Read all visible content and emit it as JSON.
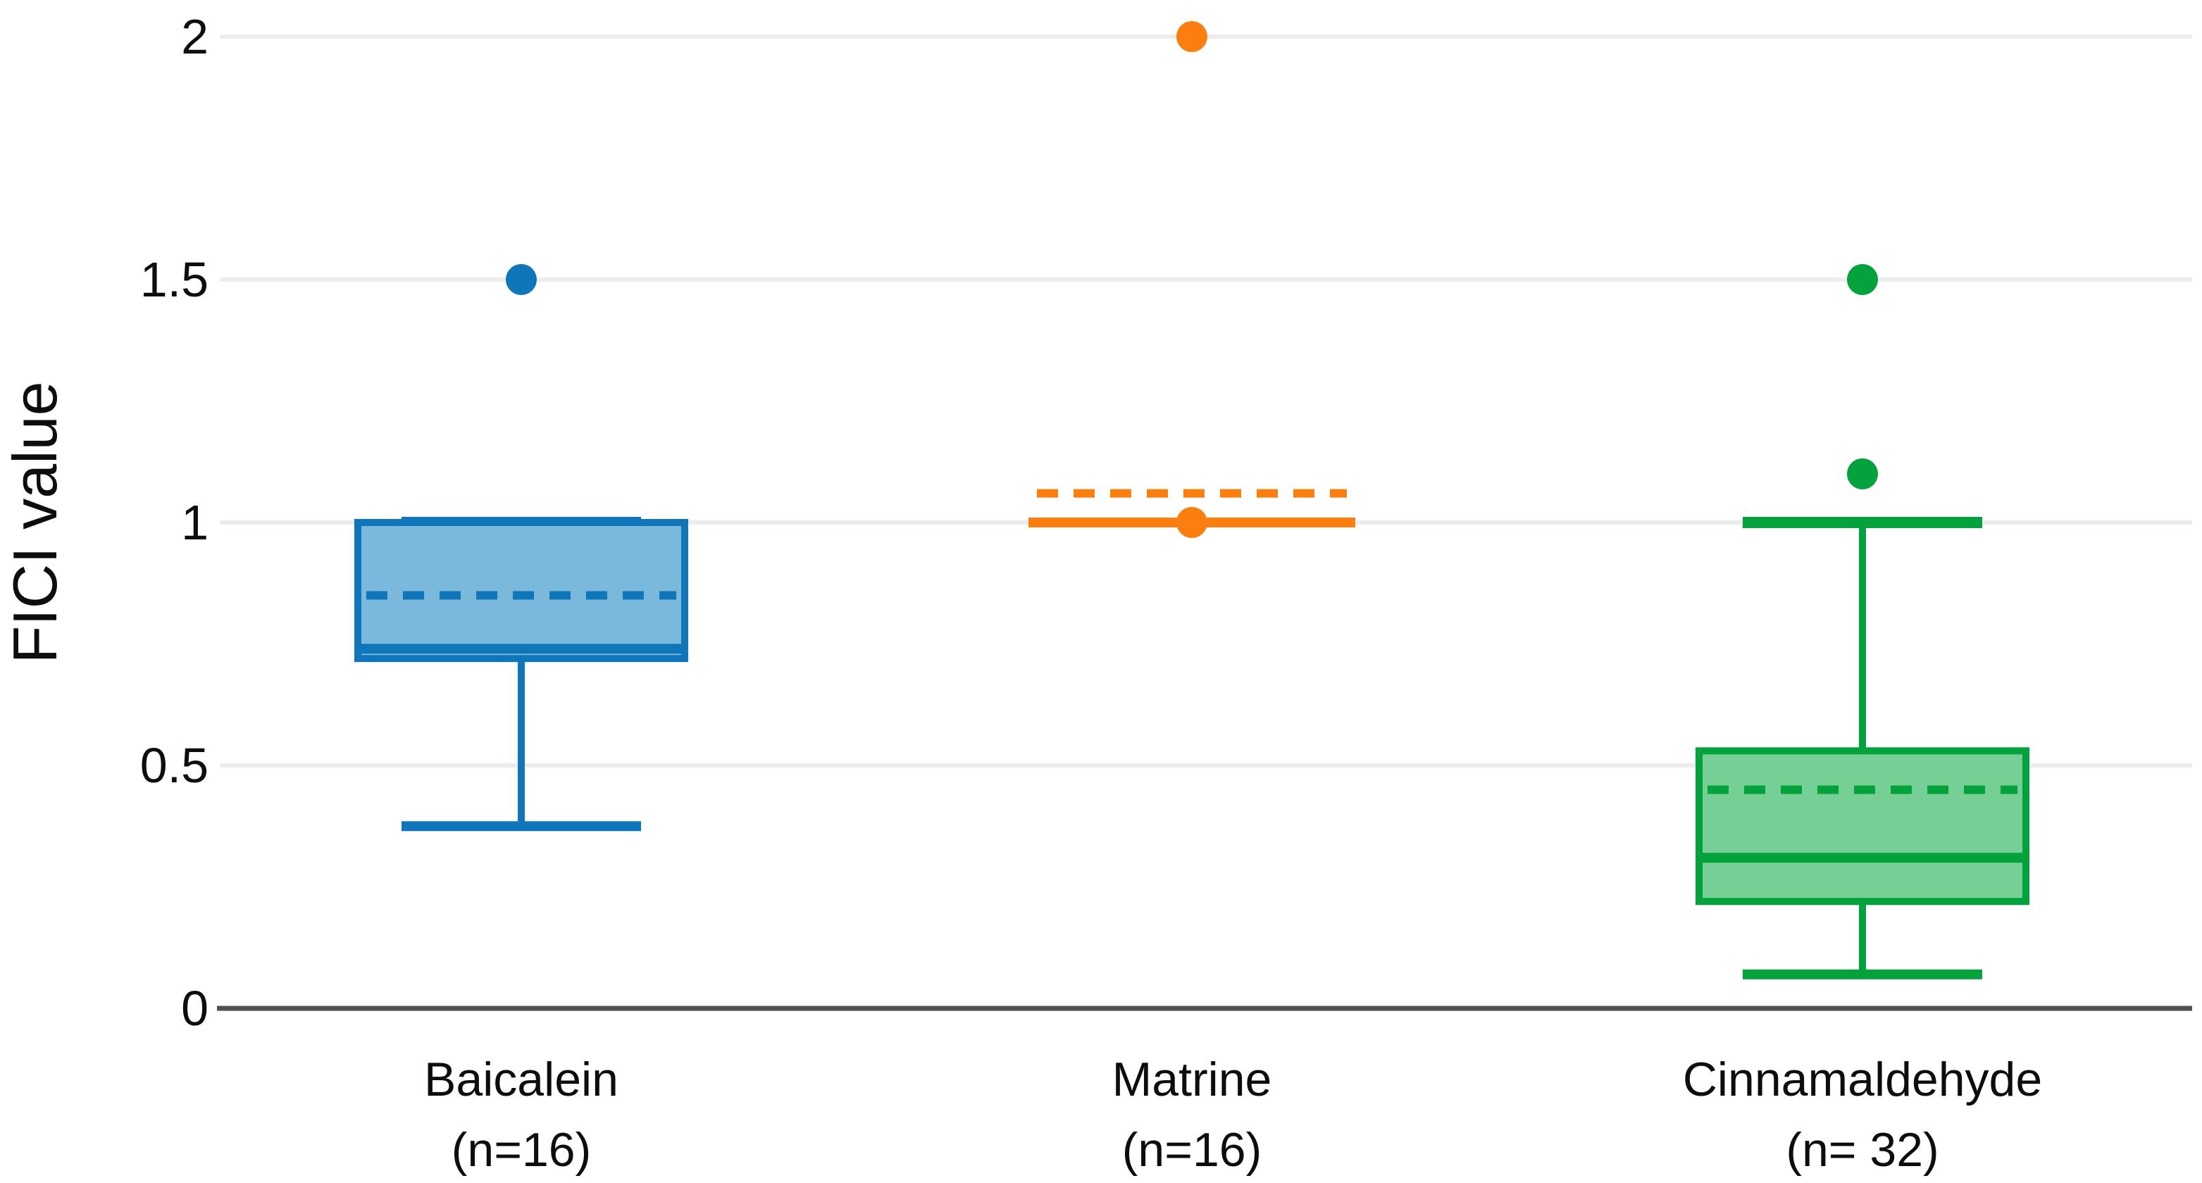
{
  "figure": {
    "background": "#ffffff"
  },
  "chart_data": {
    "type": "boxplot",
    "title": "",
    "ylabel": "FICI value",
    "xlabel": "",
    "ylim": [
      0,
      2.05
    ],
    "yticks": [
      0,
      0.5,
      1,
      1.5,
      2
    ],
    "ytick_labels": [
      "0",
      "0.5",
      "1",
      "1.5",
      "2"
    ],
    "grid": "horizontal-light-gridlines-at-each-tick",
    "legend_position": "none",
    "groups": [
      {
        "label": "Baicalein",
        "sublabel": "(n=16)",
        "stroke": "#0f76ba",
        "fill": "#7ab9dc",
        "stats": {
          "whisker_low": 0.375,
          "q1": 0.72,
          "median": 0.74,
          "mean": 0.85,
          "q3": 1.0,
          "whisker_high": 1.0,
          "outliers": [
            1.5
          ]
        }
      },
      {
        "label": "Matrine",
        "sublabel": "(n=16)",
        "stroke": "#fb7e0e",
        "fill": "#fb7e0e",
        "stats": {
          "whisker_low": 1.0,
          "q1": 1.0,
          "median": 1.0,
          "mean": 1.06,
          "q3": 1.0,
          "whisker_high": 1.0,
          "outliers": [
            2.0
          ],
          "median_marker": true
        }
      },
      {
        "label": "Cinnamaldehyde",
        "sublabel": "(n= 32)",
        "stroke": "#04a23c",
        "fill": "#76d095",
        "stats": {
          "whisker_low": 0.07,
          "q1": 0.22,
          "median": 0.31,
          "mean": 0.45,
          "q3": 0.53,
          "whisker_high": 1.0,
          "outliers": [
            1.1,
            1.5
          ]
        }
      }
    ],
    "style": {
      "grid_color": "#ececec",
      "axis_color": "#4f4f4f",
      "text_color": "#0d0d0d"
    }
  }
}
